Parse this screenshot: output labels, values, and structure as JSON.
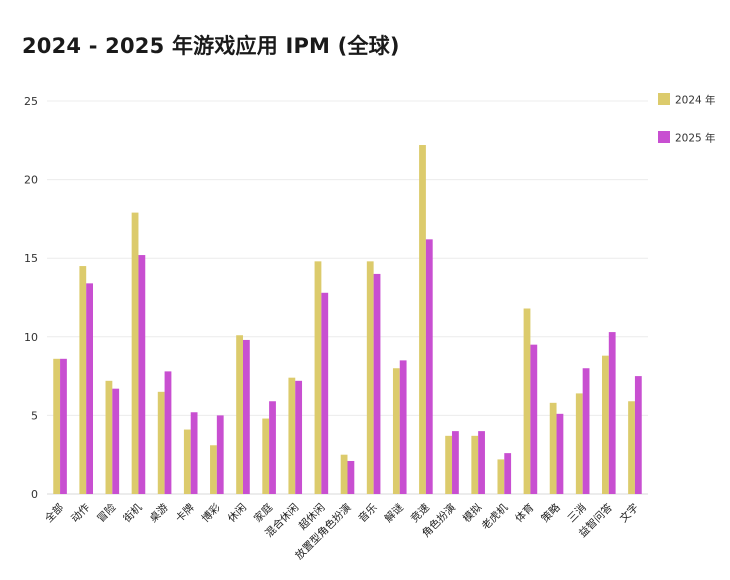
{
  "chart_data": {
    "type": "bar",
    "title": "2024 - 2025 年游戏应用 IPM (全球)",
    "xlabel": "",
    "ylabel": "",
    "ylim": [
      0,
      25
    ],
    "yticks": [
      0,
      5,
      10,
      15,
      20,
      25
    ],
    "grid": true,
    "legend_position": "top-right",
    "categories": [
      "全部",
      "动作",
      "冒险",
      "街机",
      "桌游",
      "卡牌",
      "博彩",
      "休闲",
      "家庭",
      "混合休闲",
      "超休闲",
      "放置型角色扮演",
      "音乐",
      "解谜",
      "竞速",
      "角色扮演",
      "模拟",
      "老虎机",
      "体育",
      "策略",
      "三消",
      "益智问答",
      "文字"
    ],
    "series": [
      {
        "name": "2024 年",
        "color": "#dccb6c",
        "values": [
          8.6,
          14.5,
          7.2,
          17.9,
          6.5,
          4.1,
          3.1,
          10.1,
          4.8,
          7.4,
          14.8,
          2.5,
          14.8,
          8.0,
          22.2,
          3.7,
          3.7,
          2.2,
          11.8,
          5.8,
          6.4,
          8.8,
          5.9
        ]
      },
      {
        "name": "2025 年",
        "color": "#c84fd1",
        "values": [
          8.6,
          13.4,
          6.7,
          15.2,
          7.8,
          5.2,
          5.0,
          9.8,
          5.9,
          7.2,
          12.8,
          2.1,
          14.0,
          8.5,
          16.2,
          4.0,
          4.0,
          2.6,
          9.5,
          5.1,
          8.0,
          10.3,
          7.5
        ]
      }
    ]
  }
}
